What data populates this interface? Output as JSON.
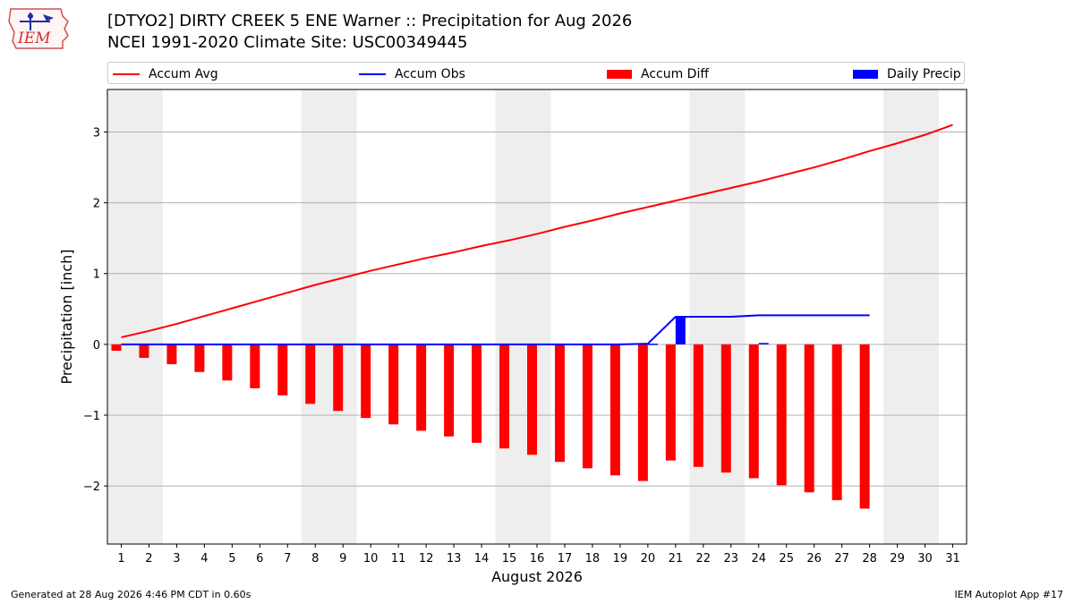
{
  "header": {
    "title_line1": "[DTYO2] DIRTY CREEK 5 ENE Warner :: Precipitation for Aug 2026",
    "title_line2": "NCEI 1991-2020 Climate Site: USC00349445",
    "logo_text": "IEM"
  },
  "legend": {
    "accum_avg": "Accum Avg",
    "accum_obs": "Accum Obs",
    "accum_diff": "Accum Diff",
    "daily_precip": "Daily Precip"
  },
  "footer": {
    "generated": "Generated at 28 Aug 2026 4:46 PM CDT in 0.60s",
    "app": "IEM Autoplot App #17"
  },
  "colors": {
    "avg": "#ff0000",
    "obs": "#0000ff",
    "diff": "#ff0000",
    "daily": "#0000ff",
    "weekend_band": "#eeeeee",
    "grid": "#b0b0b0"
  },
  "chart_data": {
    "type": "bar",
    "xlabel": "August 2026",
    "ylabel": "Precipitation [inch]",
    "xlim": [
      0.5,
      31.5
    ],
    "ylim": [
      -2.82,
      3.6
    ],
    "yticks": [
      3,
      2,
      1,
      0,
      -1,
      -2
    ],
    "ytick_labels": [
      "3",
      "2",
      "1",
      "0",
      "−1",
      "−2"
    ],
    "xticks": [
      1,
      2,
      3,
      4,
      5,
      6,
      7,
      8,
      9,
      10,
      11,
      12,
      13,
      14,
      15,
      16,
      17,
      18,
      19,
      20,
      21,
      22,
      23,
      24,
      25,
      26,
      27,
      28,
      29,
      30,
      31
    ],
    "weekend_bands": [
      [
        1,
        2
      ],
      [
        8,
        9
      ],
      [
        15,
        16
      ],
      [
        22,
        23
      ],
      [
        29,
        30
      ]
    ],
    "grid": "horizontal",
    "legend_position": "top",
    "series": [
      {
        "name": "Accum Avg",
        "type": "line",
        "x": [
          1,
          2,
          3,
          4,
          5,
          6,
          7,
          8,
          9,
          10,
          11,
          12,
          13,
          14,
          15,
          16,
          17,
          18,
          19,
          20,
          21,
          22,
          23,
          24,
          25,
          26,
          27,
          28,
          29,
          30,
          31
        ],
        "values": [
          0.1,
          0.19,
          0.29,
          0.4,
          0.51,
          0.62,
          0.73,
          0.84,
          0.94,
          1.04,
          1.13,
          1.22,
          1.3,
          1.39,
          1.47,
          1.56,
          1.66,
          1.75,
          1.85,
          1.94,
          2.03,
          2.12,
          2.21,
          2.3,
          2.4,
          2.5,
          2.61,
          2.73,
          2.84,
          2.96,
          3.1
        ]
      },
      {
        "name": "Accum Obs",
        "type": "line",
        "x": [
          1,
          2,
          3,
          4,
          5,
          6,
          7,
          8,
          9,
          10,
          11,
          12,
          13,
          14,
          15,
          16,
          17,
          18,
          19,
          20,
          21,
          22,
          23,
          24,
          25,
          26,
          27,
          28
        ],
        "values": [
          0,
          0,
          0,
          0,
          0,
          0,
          0,
          0,
          0,
          0,
          0,
          0,
          0,
          0,
          0,
          0,
          0,
          0,
          0,
          0.01,
          0.39,
          0.39,
          0.39,
          0.41,
          0.41,
          0.41,
          0.41,
          0.41
        ]
      },
      {
        "name": "Accum Diff",
        "type": "bar",
        "x": [
          1,
          2,
          3,
          4,
          5,
          6,
          7,
          8,
          9,
          10,
          11,
          12,
          13,
          14,
          15,
          16,
          17,
          18,
          19,
          20,
          21,
          22,
          23,
          24,
          25,
          26,
          27,
          28
        ],
        "values": [
          -0.09,
          -0.19,
          -0.28,
          -0.39,
          -0.51,
          -0.62,
          -0.72,
          -0.84,
          -0.94,
          -1.04,
          -1.13,
          -1.22,
          -1.3,
          -1.39,
          -1.47,
          -1.56,
          -1.66,
          -1.75,
          -1.85,
          -1.93,
          -1.64,
          -1.73,
          -1.81,
          -1.89,
          -1.99,
          -2.09,
          -2.2,
          -2.32
        ]
      },
      {
        "name": "Daily Precip",
        "type": "bar",
        "x": [
          20,
          21,
          24
        ],
        "values": [
          0.01,
          0.38,
          0.02
        ]
      }
    ]
  }
}
